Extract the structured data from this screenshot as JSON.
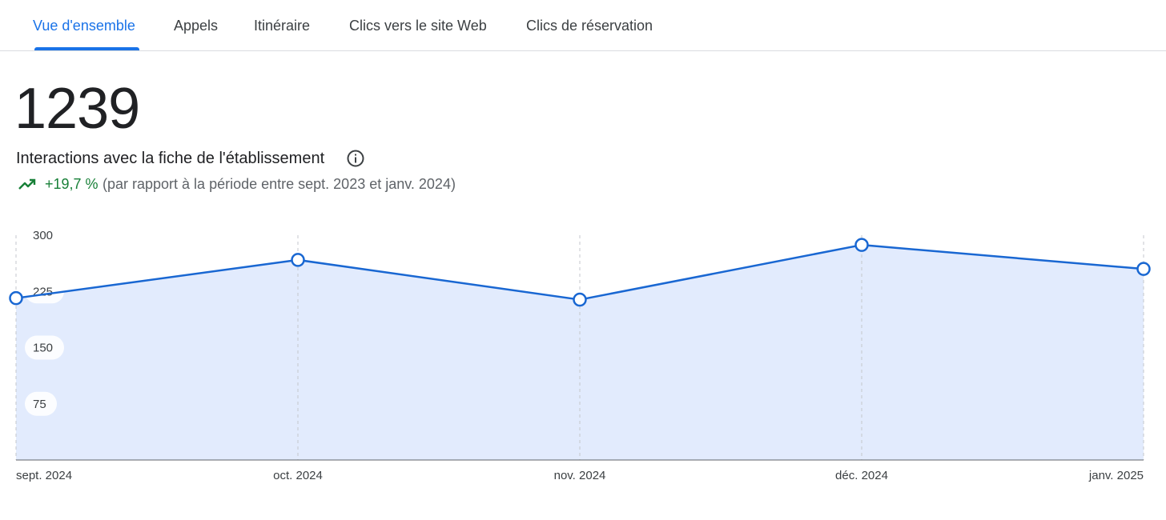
{
  "tabs": [
    {
      "label": "Vue d'ensemble",
      "active": true
    },
    {
      "label": "Appels",
      "active": false
    },
    {
      "label": "Itinéraire",
      "active": false
    },
    {
      "label": "Clics vers le site Web",
      "active": false
    },
    {
      "label": "Clics de réservation",
      "active": false
    }
  ],
  "summary": {
    "total": "1239",
    "label": "Interactions avec la fiche de l'établissement",
    "change": "+19,7 %",
    "comparison": "(par rapport à la période entre sept. 2023 et janv. 2024)"
  },
  "icons": {
    "info": "info-icon",
    "trend": "trending-up-icon"
  },
  "colors": {
    "accent": "#1a73e8",
    "line": "#1967d2",
    "area": "#e2ebfd",
    "positive": "#188038"
  },
  "chart_data": {
    "type": "area",
    "categories": [
      "sept. 2024",
      "oct. 2024",
      "nov. 2024",
      "déc. 2024",
      "janv. 2025"
    ],
    "series": [
      {
        "values": [
          216,
          267,
          214,
          287,
          255
        ]
      }
    ],
    "ylim": [
      0,
      300
    ],
    "yticks": [
      75,
      150,
      225,
      300
    ],
    "grid": "vertical dashed lines at each category",
    "markers": "hollow circles"
  }
}
